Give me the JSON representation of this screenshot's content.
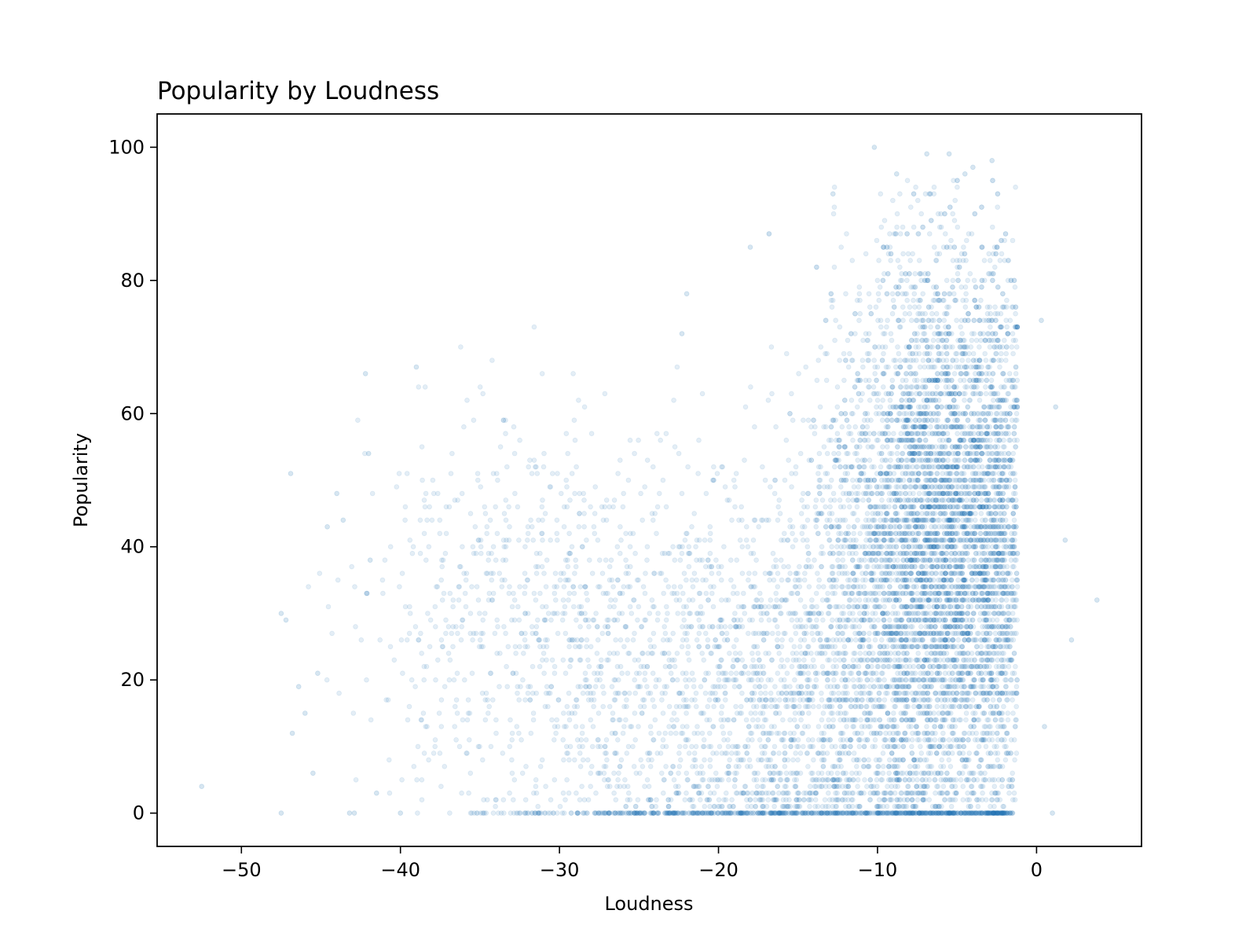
{
  "chart_data": {
    "type": "scatter",
    "title": "Popularity by Loudness",
    "xlabel": "Loudness",
    "ylabel": "Popularity",
    "xlim": [
      -55.3,
      6.6
    ],
    "ylim": [
      -5,
      105
    ],
    "x_ticks": [
      -50,
      -40,
      -30,
      -20,
      -10,
      0
    ],
    "x_tick_labels": [
      "−50",
      "−40",
      "−30",
      "−20",
      "−10",
      "0"
    ],
    "y_ticks": [
      0,
      20,
      40,
      60,
      80,
      100
    ],
    "y_tick_labels": [
      "0",
      "20",
      "40",
      "60",
      "80",
      "100"
    ],
    "grid": false,
    "legend": "none",
    "marker_color": "#1f77b4",
    "marker_alpha": 0.12,
    "series": [
      {
        "note_points": "representative sample of the visible point cloud; popularity values are integers",
        "outliers": [
          {
            "x": -52.5,
            "y": 4
          },
          {
            "x": -47.5,
            "y": 0
          },
          {
            "x": -47.5,
            "y": 30
          },
          {
            "x": -47.2,
            "y": 29
          },
          {
            "x": -46.9,
            "y": 51
          },
          {
            "x": -46.8,
            "y": 12
          },
          {
            "x": -46.4,
            "y": 19
          },
          {
            "x": -46.0,
            "y": 15
          },
          {
            "x": -45.5,
            "y": 6
          },
          {
            "x": -45.2,
            "y": 21
          },
          {
            "x": -44.6,
            "y": 43
          },
          {
            "x": -44.0,
            "y": 48
          },
          {
            "x": -43.6,
            "y": 44
          },
          {
            "x": -43.2,
            "y": 0
          },
          {
            "x": -42.9,
            "y": 0
          },
          {
            "x": -42.2,
            "y": 66
          },
          {
            "x": -41.9,
            "y": 38
          },
          {
            "x": -42.0,
            "y": 54
          },
          {
            "x": -40.0,
            "y": 0
          },
          {
            "x": -39.0,
            "y": 67
          },
          {
            "x": -41.5,
            "y": 3
          },
          {
            "x": -22.3,
            "y": 72
          },
          {
            "x": -22.0,
            "y": 78
          },
          {
            "x": -18.0,
            "y": 85
          },
          {
            "x": -12.8,
            "y": 93
          },
          {
            "x": -10.2,
            "y": 100
          },
          {
            "x": -8.8,
            "y": 96
          },
          {
            "x": -6.9,
            "y": 99
          },
          {
            "x": -5.5,
            "y": 99
          },
          {
            "x": -4.0,
            "y": 97
          },
          {
            "x": -2.8,
            "y": 98
          },
          {
            "x": -4.5,
            "y": 96
          },
          {
            "x": 0.3,
            "y": 74
          },
          {
            "x": 1.2,
            "y": 61
          },
          {
            "x": 2.2,
            "y": 26
          },
          {
            "x": 3.8,
            "y": 32
          },
          {
            "x": 1.8,
            "y": 41
          },
          {
            "x": 1.0,
            "y": 0
          },
          {
            "x": -1.5,
            "y": 0
          },
          {
            "x": 0.5,
            "y": 13
          }
        ],
        "clusters": [
          {
            "cx": -6.0,
            "cy": 45,
            "sx": 3.2,
            "sy": 20,
            "weight": 0.55
          },
          {
            "cx": -9.0,
            "cy": 25,
            "sx": 5.0,
            "sy": 17,
            "weight": 0.2
          },
          {
            "cx": -16.0,
            "cy": 15,
            "sx": 6.0,
            "sy": 14,
            "weight": 0.12
          },
          {
            "cx": -25.0,
            "cy": 22,
            "sx": 6.5,
            "sy": 15,
            "weight": 0.08
          },
          {
            "cx": -33.0,
            "cy": 32,
            "sx": 5.0,
            "sy": 14,
            "weight": 0.05
          }
        ],
        "zero_band": {
          "y": 0,
          "x_min": -40,
          "x_max": -1.5
        }
      }
    ]
  }
}
